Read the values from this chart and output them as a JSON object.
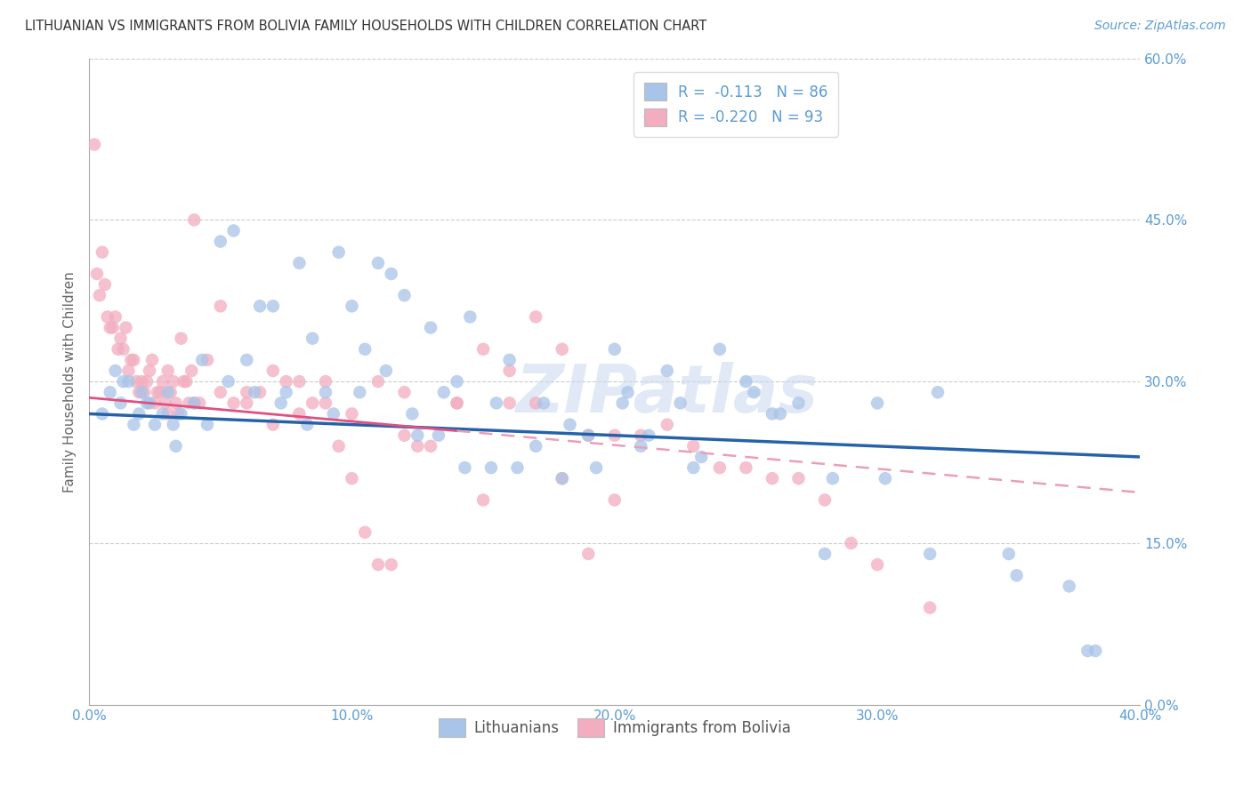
{
  "title": "LITHUANIAN VS IMMIGRANTS FROM BOLIVIA FAMILY HOUSEHOLDS WITH CHILDREN CORRELATION CHART",
  "source": "Source: ZipAtlas.com",
  "ylabel": "Family Households with Children",
  "xlim": [
    0.0,
    40.0
  ],
  "ylim": [
    0.0,
    60.0
  ],
  "xticks": [
    0.0,
    10.0,
    20.0,
    30.0,
    40.0
  ],
  "yticks": [
    0.0,
    15.0,
    30.0,
    45.0,
    60.0
  ],
  "legend_r1": "R =  -0.113   N = 86",
  "legend_r2": "R = -0.220   N = 93",
  "blue_color": "#a8c4e8",
  "pink_color": "#f2adc0",
  "blue_line_color": "#2563a8",
  "pink_solid_color": "#e05080",
  "pink_dash_color": "#e8a0b8",
  "background": "#ffffff",
  "grid_color": "#cccccc",
  "watermark": "ZIPatlas",
  "blue_intercept": 27.0,
  "blue_slope": -0.1,
  "pink_solid_intercept": 28.5,
  "pink_solid_slope": -0.22,
  "pink_dash_x_start": 14.0,
  "pink_dash_intercept": 28.5,
  "pink_dash_slope": -0.22,
  "blue_x": [
    0.5,
    0.8,
    1.0,
    1.2,
    1.5,
    1.7,
    1.9,
    2.0,
    2.2,
    2.5,
    2.8,
    3.0,
    3.2,
    3.5,
    4.0,
    4.5,
    5.0,
    5.5,
    6.0,
    6.5,
    7.0,
    7.5,
    8.0,
    8.5,
    9.0,
    9.5,
    10.0,
    10.5,
    11.0,
    11.5,
    12.0,
    12.5,
    13.0,
    13.5,
    14.0,
    14.5,
    15.5,
    16.0,
    17.0,
    18.0,
    19.0,
    20.0,
    20.5,
    21.0,
    22.0,
    22.5,
    23.0,
    24.0,
    25.0,
    26.0,
    27.0,
    28.0,
    30.0,
    32.0,
    35.0,
    38.0,
    1.3,
    2.3,
    3.3,
    4.3,
    5.3,
    6.3,
    7.3,
    8.3,
    9.3,
    10.3,
    11.3,
    12.3,
    13.3,
    14.3,
    15.3,
    16.3,
    17.3,
    18.3,
    19.3,
    20.3,
    21.3,
    23.3,
    25.3,
    26.3,
    28.3,
    30.3,
    32.3,
    35.3,
    37.3,
    38.3
  ],
  "blue_y": [
    27,
    29,
    31,
    28,
    30,
    26,
    27,
    29,
    28,
    26,
    27,
    29,
    26,
    27,
    28,
    26,
    43,
    44,
    32,
    37,
    37,
    29,
    41,
    34,
    29,
    42,
    37,
    33,
    41,
    40,
    38,
    25,
    35,
    29,
    30,
    36,
    28,
    32,
    24,
    21,
    25,
    33,
    29,
    24,
    31,
    28,
    22,
    33,
    30,
    27,
    28,
    14,
    28,
    14,
    14,
    5,
    30,
    28,
    24,
    32,
    30,
    29,
    28,
    26,
    27,
    29,
    31,
    27,
    25,
    22,
    22,
    22,
    28,
    26,
    22,
    28,
    25,
    23,
    29,
    27,
    21,
    21,
    29,
    12,
    11,
    5
  ],
  "pink_x": [
    0.2,
    0.3,
    0.4,
    0.5,
    0.6,
    0.7,
    0.8,
    0.9,
    1.0,
    1.1,
    1.2,
    1.3,
    1.4,
    1.5,
    1.6,
    1.7,
    1.8,
    1.9,
    2.0,
    2.1,
    2.2,
    2.3,
    2.4,
    2.5,
    2.6,
    2.7,
    2.8,
    2.9,
    3.0,
    3.1,
    3.2,
    3.3,
    3.4,
    3.5,
    3.6,
    3.7,
    3.8,
    3.9,
    4.0,
    4.2,
    4.5,
    5.0,
    5.5,
    6.0,
    6.5,
    7.0,
    7.5,
    8.0,
    8.5,
    9.0,
    9.5,
    10.0,
    10.5,
    11.0,
    11.5,
    12.0,
    12.5,
    14.0,
    15.0,
    16.0,
    17.0,
    18.0,
    19.0,
    20.0,
    3.0,
    4.0,
    5.0,
    6.0,
    7.0,
    8.0,
    9.0,
    10.0,
    11.0,
    12.0,
    13.0,
    14.0,
    15.0,
    16.0,
    17.0,
    18.0,
    19.0,
    20.0,
    21.0,
    22.0,
    23.0,
    24.0,
    25.0,
    26.0,
    27.0,
    28.0,
    29.0,
    30.0,
    32.0
  ],
  "pink_y": [
    52,
    40,
    38,
    42,
    39,
    36,
    35,
    35,
    36,
    33,
    34,
    33,
    35,
    31,
    32,
    32,
    30,
    29,
    30,
    29,
    30,
    31,
    32,
    28,
    29,
    29,
    30,
    28,
    31,
    29,
    30,
    28,
    27,
    34,
    30,
    30,
    28,
    31,
    28,
    28,
    32,
    29,
    28,
    28,
    29,
    31,
    30,
    30,
    28,
    28,
    24,
    21,
    16,
    13,
    13,
    29,
    24,
    28,
    19,
    28,
    36,
    21,
    14,
    19,
    27,
    45,
    37,
    29,
    26,
    27,
    30,
    27,
    30,
    25,
    24,
    28,
    33,
    31,
    28,
    33,
    25,
    25,
    25,
    26,
    24,
    22,
    22,
    21,
    21,
    19,
    15,
    13,
    9
  ]
}
